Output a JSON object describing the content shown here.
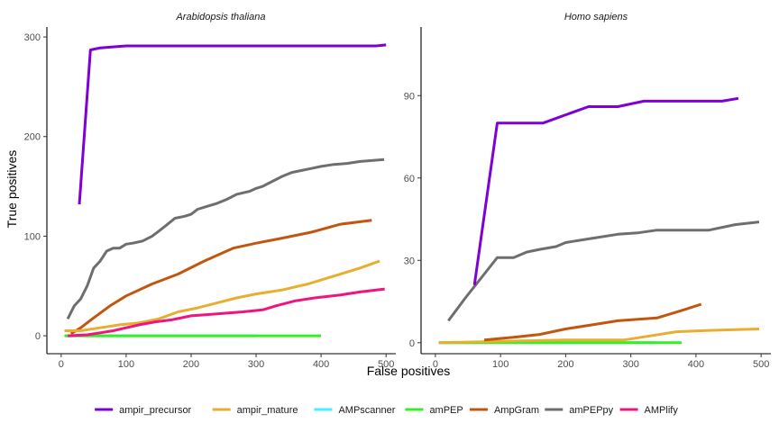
{
  "chart_data": {
    "type": "line",
    "xlabel": "False positives",
    "ylabel": "True positives",
    "legend_position": "bottom",
    "grid": false,
    "series_styles": [
      {
        "name": "ampir_precursor",
        "color": "#7F00D6"
      },
      {
        "name": "ampir_mature",
        "color": "#E9AE2F"
      },
      {
        "name": "AMPscanner",
        "color": "#40F0FF"
      },
      {
        "name": "amPEP",
        "color": "#33F023"
      },
      {
        "name": "AmpGram",
        "color": "#C2560F"
      },
      {
        "name": "amPEPpy",
        "color": "#6E6E6E"
      },
      {
        "name": "AMPlify",
        "color": "#F0147F"
      }
    ],
    "panels": [
      {
        "title": "Arabidopsis thaliana",
        "xlim": [
          -22,
          515
        ],
        "ylim": [
          -18,
          310
        ],
        "xticks": [
          0,
          100,
          200,
          300,
          400,
          500
        ],
        "yticks": [
          0,
          100,
          200,
          300
        ],
        "series": [
          {
            "name": "AMPscanner",
            "points": [
              [
                5,
                0
              ],
              [
                300,
                0
              ]
            ]
          },
          {
            "name": "amPEP",
            "points": [
              [
                5,
                0
              ],
              [
                100,
                0
              ],
              [
                300,
                0
              ],
              [
                400,
                0
              ]
            ]
          },
          {
            "name": "amPEPpy",
            "points": [
              [
                10,
                17
              ],
              [
                20,
                30
              ],
              [
                30,
                37
              ],
              [
                40,
                50
              ],
              [
                50,
                68
              ],
              [
                60,
                75
              ],
              [
                70,
                85
              ],
              [
                80,
                88
              ],
              [
                90,
                88
              ],
              [
                100,
                92
              ],
              [
                110,
                93
              ],
              [
                125,
                95
              ],
              [
                140,
                100
              ],
              [
                150,
                105
              ],
              [
                160,
                110
              ],
              [
                175,
                118
              ],
              [
                190,
                120
              ],
              [
                200,
                122
              ],
              [
                210,
                127
              ],
              [
                225,
                130
              ],
              [
                240,
                133
              ],
              [
                255,
                137
              ],
              [
                270,
                142
              ],
              [
                290,
                145
              ],
              [
                300,
                148
              ],
              [
                310,
                150
              ],
              [
                325,
                155
              ],
              [
                340,
                160
              ],
              [
                355,
                164
              ],
              [
                370,
                166
              ],
              [
                385,
                168
              ],
              [
                400,
                170
              ],
              [
                420,
                172
              ],
              [
                440,
                173
              ],
              [
                460,
                175
              ],
              [
                480,
                176
              ],
              [
                497,
                177
              ]
            ]
          },
          {
            "name": "AmpGram",
            "points": [
              [
                15,
                2
              ],
              [
                30,
                8
              ],
              [
                50,
                18
              ],
              [
                75,
                30
              ],
              [
                100,
                40
              ],
              [
                140,
                52
              ],
              [
                180,
                62
              ],
              [
                220,
                75
              ],
              [
                265,
                88
              ],
              [
                300,
                93
              ],
              [
                340,
                98
              ],
              [
                385,
                104
              ],
              [
                430,
                112
              ],
              [
                478,
                116
              ]
            ]
          },
          {
            "name": "ampir_mature",
            "points": [
              [
                5,
                5
              ],
              [
                30,
                5
              ],
              [
                60,
                8
              ],
              [
                90,
                11
              ],
              [
                120,
                13
              ],
              [
                150,
                17
              ],
              [
                180,
                24
              ],
              [
                210,
                28
              ],
              [
                240,
                33
              ],
              [
                270,
                38
              ],
              [
                300,
                42
              ],
              [
                340,
                46
              ],
              [
                380,
                52
              ],
              [
                420,
                60
              ],
              [
                460,
                68
              ],
              [
                490,
                75
              ]
            ]
          },
          {
            "name": "AMPlify",
            "points": [
              [
                10,
                0
              ],
              [
                40,
                1
              ],
              [
                60,
                3
              ],
              [
                80,
                5
              ],
              [
                100,
                8
              ],
              [
                120,
                11
              ],
              [
                145,
                14
              ],
              [
                170,
                16
              ],
              [
                200,
                20
              ],
              [
                240,
                22
              ],
              [
                280,
                24
              ],
              [
                310,
                26
              ],
              [
                330,
                30
              ],
              [
                360,
                35
              ],
              [
                390,
                38
              ],
              [
                430,
                41
              ],
              [
                460,
                44
              ],
              [
                498,
                47
              ]
            ]
          },
          {
            "name": "ampir_precursor",
            "points": [
              [
                28,
                132
              ],
              [
                45,
                287
              ],
              [
                60,
                289
              ],
              [
                80,
                290
              ],
              [
                100,
                291
              ],
              [
                200,
                291
              ],
              [
                300,
                291
              ],
              [
                400,
                291
              ],
              [
                485,
                291
              ],
              [
                500,
                292
              ]
            ]
          }
        ]
      },
      {
        "title": "Homo sapiens",
        "xlim": [
          -22,
          515
        ],
        "ylim": [
          -4,
          115
        ],
        "xticks": [
          0,
          100,
          200,
          300,
          400,
          500
        ],
        "yticks": [
          0,
          30,
          60,
          90
        ],
        "series": [
          {
            "name": "AMPscanner",
            "points": [
              [
                5,
                0
              ],
              [
                300,
                0
              ],
              [
                340,
                0
              ]
            ]
          },
          {
            "name": "amPEP",
            "points": [
              [
                5,
                0
              ],
              [
                100,
                0
              ],
              [
                340,
                0
              ],
              [
                378,
                0
              ]
            ]
          },
          {
            "name": "ampir_mature",
            "points": [
              [
                5,
                0
              ],
              [
                100,
                0.5
              ],
              [
                200,
                1
              ],
              [
                290,
                1
              ],
              [
                330,
                2.5
              ],
              [
                370,
                4
              ],
              [
                420,
                4.5
              ],
              [
                497,
                5
              ]
            ]
          },
          {
            "name": "AmpGram",
            "points": [
              [
                75,
                1
              ],
              [
                120,
                2
              ],
              [
                160,
                3
              ],
              [
                200,
                5
              ],
              [
                240,
                6.5
              ],
              [
                280,
                8
              ],
              [
                340,
                9
              ],
              [
                375,
                11.5
              ],
              [
                408,
                14
              ]
            ]
          },
          {
            "name": "amPEPpy",
            "points": [
              [
                20,
                8
              ],
              [
                45,
                16
              ],
              [
                75,
                25
              ],
              [
                95,
                31
              ],
              [
                120,
                31
              ],
              [
                140,
                33
              ],
              [
                160,
                34
              ],
              [
                185,
                35
              ],
              [
                200,
                36.5
              ],
              [
                240,
                38
              ],
              [
                280,
                39.5
              ],
              [
                310,
                40
              ],
              [
                340,
                41
              ],
              [
                380,
                41
              ],
              [
                420,
                41
              ],
              [
                460,
                43
              ],
              [
                497,
                44
              ]
            ]
          },
          {
            "name": "ampir_precursor",
            "points": [
              [
                60,
                21
              ],
              [
                95,
                80
              ],
              [
                165,
                80
              ],
              [
                200,
                83
              ],
              [
                235,
                86
              ],
              [
                280,
                86
              ],
              [
                320,
                88
              ],
              [
                440,
                88
              ],
              [
                465,
                89
              ]
            ]
          }
        ]
      }
    ]
  }
}
